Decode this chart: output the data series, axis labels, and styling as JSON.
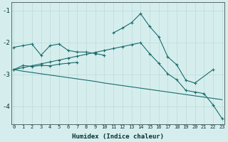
{
  "xlabel": "Humidex (Indice chaleur)",
  "x_ticks": [
    0,
    1,
    2,
    3,
    4,
    5,
    6,
    7,
    8,
    9,
    10,
    11,
    12,
    13,
    14,
    15,
    16,
    17,
    18,
    19,
    20,
    21,
    22,
    23
  ],
  "yticks": [
    -1,
    -2,
    -3,
    -4
  ],
  "ylim": [
    -4.55,
    -0.75
  ],
  "xlim": [
    -0.3,
    23.3
  ],
  "bg_color": "#d5eeed",
  "grid_color": "#bbdbd8",
  "line_color": "#1a6b6b",
  "series_upper": [
    -2.15,
    -2.1,
    -2.05,
    -2.4,
    -2.1,
    -2.05,
    -2.25,
    -2.3,
    -2.3,
    -2.35,
    -2.4,
    null,
    null,
    null,
    null,
    null,
    null,
    null,
    null,
    null,
    null,
    null,
    null,
    null
  ],
  "series_lower_short": [
    -2.85,
    -2.72,
    -2.75,
    -2.72,
    -2.73,
    -2.68,
    -2.65,
    -2.62,
    null,
    null,
    null,
    null,
    null,
    null,
    null,
    null,
    null,
    null,
    null,
    null,
    null,
    null,
    null,
    null
  ],
  "series_diagonal_upper": [
    -2.85,
    -2.79,
    -2.73,
    -2.67,
    -2.61,
    -2.55,
    -2.49,
    -2.43,
    -2.37,
    -2.31,
    -2.25,
    -2.19,
    -2.13,
    -2.07,
    -2.01,
    -2.35,
    -2.65,
    -2.98,
    -3.17,
    -3.5,
    -3.55,
    -3.6,
    -3.95,
    -4.38
  ],
  "series_diagonal_lower": [
    -2.85,
    -2.9,
    -2.94,
    -2.98,
    -3.02,
    -3.06,
    -3.1,
    -3.14,
    -3.18,
    -3.22,
    -3.27,
    -3.31,
    -3.35,
    -3.39,
    -3.43,
    -3.47,
    -3.51,
    -3.55,
    -3.59,
    -3.63,
    -3.67,
    -3.71,
    -3.75,
    -3.79
  ],
  "series_peak": [
    null,
    null,
    null,
    null,
    null,
    null,
    null,
    null,
    null,
    null,
    null,
    -1.7,
    -1.55,
    -1.38,
    -1.1,
    -1.5,
    -1.82,
    -2.45,
    -2.7,
    -3.18,
    -3.27,
    null,
    -2.85,
    null
  ]
}
